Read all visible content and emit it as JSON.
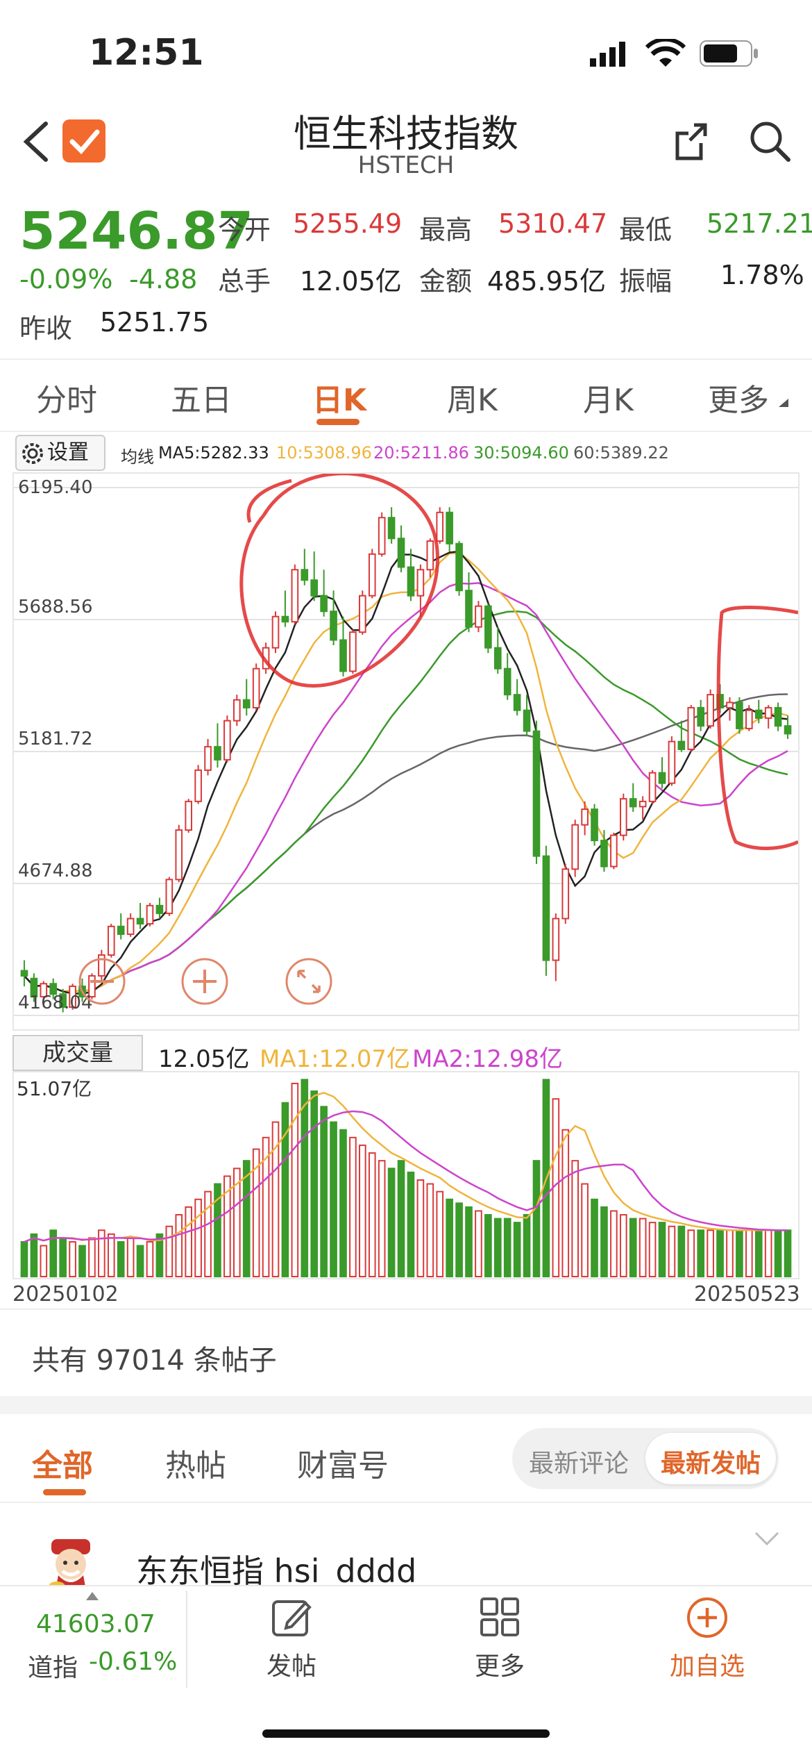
{
  "status_bar": {
    "time": "12:51"
  },
  "header": {
    "title": "恒生科技指数",
    "subtitle": "HSTECH"
  },
  "quote": {
    "price": "5246.87",
    "change_pct": "-0.09%",
    "change": "-4.88",
    "open_label": "今开",
    "open": "5255.49",
    "high_label": "最高",
    "high": "5310.47",
    "low_label": "最低",
    "low": "5217.21",
    "volume_label": "总手",
    "volume": "12.05亿",
    "amount_label": "金额",
    "amount": "485.95亿",
    "amplitude_label": "振幅",
    "amplitude": "1.78%",
    "prev_close_label": "昨收",
    "prev_close": "5251.75"
  },
  "tabs": [
    "分时",
    "五日",
    "日K",
    "周K",
    "月K",
    "更多"
  ],
  "active_tab": "日K",
  "chart_toolbar": {
    "settings_label": "设置",
    "ma_prefix": "均线",
    "ma5": "MA5:5282.33",
    "ma10": "10:5308.96",
    "ma20": "20:5211.86",
    "ma30": "30:5094.60",
    "ma60": "60:5389.22"
  },
  "colors": {
    "up": "#d93a3a",
    "down": "#3a9a2a",
    "accent": "#e0662a",
    "ma5": "#222222",
    "ma10": "#f0b43c",
    "ma20": "#cc44cc",
    "ma30": "#3a9a2a",
    "ma60": "#666666"
  },
  "volume_panel": {
    "label": "成交量",
    "current": "12.05亿",
    "ma1": "MA1:12.07亿",
    "ma2": "MA2:12.98亿",
    "max_label": "51.07亿",
    "start_date": "20250102",
    "end_date": "20250523"
  },
  "chart_data": {
    "type": "candlestick",
    "y_ticks": [
      "6195.40",
      "5688.56",
      "5181.72",
      "4674.88",
      "4168.04"
    ],
    "ylim": [
      4168.04,
      6195.4
    ],
    "x_range": [
      "20250102",
      "20250523"
    ],
    "candles": [
      [
        4340,
        4380,
        4280,
        4320
      ],
      [
        4310,
        4330,
        4220,
        4240
      ],
      [
        4240,
        4300,
        4200,
        4290
      ],
      [
        4290,
        4310,
        4230,
        4250
      ],
      [
        4250,
        4270,
        4180,
        4200
      ],
      [
        4200,
        4290,
        4190,
        4280
      ],
      [
        4280,
        4310,
        4220,
        4240
      ],
      [
        4240,
        4330,
        4230,
        4320
      ],
      [
        4320,
        4420,
        4300,
        4400
      ],
      [
        4400,
        4520,
        4390,
        4510
      ],
      [
        4510,
        4560,
        4460,
        4480
      ],
      [
        4480,
        4560,
        4470,
        4540
      ],
      [
        4540,
        4600,
        4500,
        4520
      ],
      [
        4520,
        4600,
        4510,
        4590
      ],
      [
        4590,
        4620,
        4540,
        4560
      ],
      [
        4560,
        4700,
        4550,
        4690
      ],
      [
        4690,
        4900,
        4680,
        4880
      ],
      [
        4880,
        5000,
        4870,
        4990
      ],
      [
        4990,
        5130,
        4980,
        5110
      ],
      [
        5110,
        5230,
        5090,
        5200
      ],
      [
        5200,
        5290,
        5120,
        5150
      ],
      [
        5150,
        5320,
        5140,
        5300
      ],
      [
        5300,
        5400,
        5280,
        5380
      ],
      [
        5380,
        5460,
        5320,
        5350
      ],
      [
        5350,
        5520,
        5340,
        5500
      ],
      [
        5500,
        5600,
        5480,
        5580
      ],
      [
        5580,
        5720,
        5560,
        5700
      ],
      [
        5700,
        5800,
        5660,
        5680
      ],
      [
        5680,
        5900,
        5670,
        5880
      ],
      [
        5880,
        5960,
        5820,
        5840
      ],
      [
        5840,
        5950,
        5760,
        5780
      ],
      [
        5780,
        5880,
        5700,
        5720
      ],
      [
        5720,
        5800,
        5590,
        5610
      ],
      [
        5610,
        5700,
        5470,
        5490
      ],
      [
        5490,
        5650,
        5480,
        5640
      ],
      [
        5640,
        5800,
        5630,
        5780
      ],
      [
        5780,
        5960,
        5770,
        5940
      ],
      [
        5940,
        6100,
        5930,
        6080
      ],
      [
        6080,
        6120,
        5980,
        6000
      ],
      [
        6000,
        6050,
        5870,
        5890
      ],
      [
        5890,
        5960,
        5760,
        5780
      ],
      [
        5780,
        5900,
        5700,
        5880
      ],
      [
        5880,
        6000,
        5850,
        5990
      ],
      [
        5990,
        6120,
        5980,
        6100
      ],
      [
        6100,
        6120,
        5950,
        5980
      ],
      [
        5980,
        5990,
        5780,
        5800
      ],
      [
        5800,
        5870,
        5640,
        5660
      ],
      [
        5660,
        5760,
        5640,
        5740
      ],
      [
        5740,
        5750,
        5560,
        5580
      ],
      [
        5580,
        5660,
        5480,
        5500
      ],
      [
        5500,
        5560,
        5380,
        5400
      ],
      [
        5400,
        5460,
        5320,
        5340
      ],
      [
        5340,
        5400,
        5240,
        5260
      ],
      [
        5260,
        5300,
        4750,
        4780
      ],
      [
        4780,
        4820,
        4320,
        4380
      ],
      [
        4380,
        4560,
        4300,
        4540
      ],
      [
        4540,
        4750,
        4520,
        4730
      ],
      [
        4730,
        4920,
        4700,
        4900
      ],
      [
        4900,
        4990,
        4860,
        4960
      ],
      [
        4960,
        4980,
        4820,
        4840
      ],
      [
        4840,
        4880,
        4720,
        4740
      ],
      [
        4740,
        4870,
        4730,
        4860
      ],
      [
        4860,
        5020,
        4840,
        5000
      ],
      [
        5000,
        5060,
        4950,
        4970
      ],
      [
        4970,
        5010,
        4920,
        4990
      ],
      [
        4990,
        5110,
        4980,
        5100
      ],
      [
        5100,
        5160,
        5040,
        5060
      ],
      [
        5060,
        5240,
        5050,
        5220
      ],
      [
        5220,
        5300,
        5180,
        5190
      ],
      [
        5190,
        5360,
        5180,
        5350
      ],
      [
        5350,
        5380,
        5260,
        5280
      ],
      [
        5280,
        5420,
        5270,
        5400
      ],
      [
        5400,
        5440,
        5330,
        5350
      ],
      [
        5350,
        5390,
        5300,
        5370
      ],
      [
        5370,
        5390,
        5250,
        5270
      ],
      [
        5270,
        5360,
        5260,
        5340
      ],
      [
        5340,
        5380,
        5290,
        5310
      ],
      [
        5310,
        5360,
        5270,
        5350
      ],
      [
        5350,
        5370,
        5260,
        5280
      ],
      [
        5280,
        5320,
        5230,
        5250
      ]
    ],
    "volumes": [
      9,
      11,
      8,
      12,
      10,
      9,
      8,
      10,
      12,
      11,
      9,
      10,
      8,
      9,
      11,
      13,
      16,
      18,
      20,
      22,
      24,
      26,
      28,
      30,
      33,
      36,
      40,
      45,
      50,
      51,
      48,
      44,
      40,
      38,
      36,
      34,
      32,
      30,
      28,
      30,
      27,
      25,
      24,
      22,
      20,
      19,
      18,
      17,
      16,
      15,
      15,
      14,
      16,
      30,
      51,
      46,
      38,
      30,
      24,
      20,
      18,
      17,
      16,
      15,
      15,
      14,
      14,
      13,
      13,
      12,
      12,
      12,
      12,
      12,
      12,
      12,
      12,
      12,
      12,
      12
    ]
  },
  "posts": {
    "count_text": "共有 97014 条帖子"
  },
  "filter_tabs": [
    "全部",
    "热帖",
    "财富号"
  ],
  "active_filter": "全部",
  "sort_options": [
    "最新评论",
    "最新发帖"
  ],
  "active_sort": "最新发帖",
  "post_preview": {
    "author": "东东恒指 hsi_dddd"
  },
  "bottom_bar": {
    "ticker_value": "41603.07",
    "ticker_name": "道指",
    "ticker_change": "-0.61%",
    "post_label": "发帖",
    "more_label": "更多",
    "add_label": "加自选"
  }
}
